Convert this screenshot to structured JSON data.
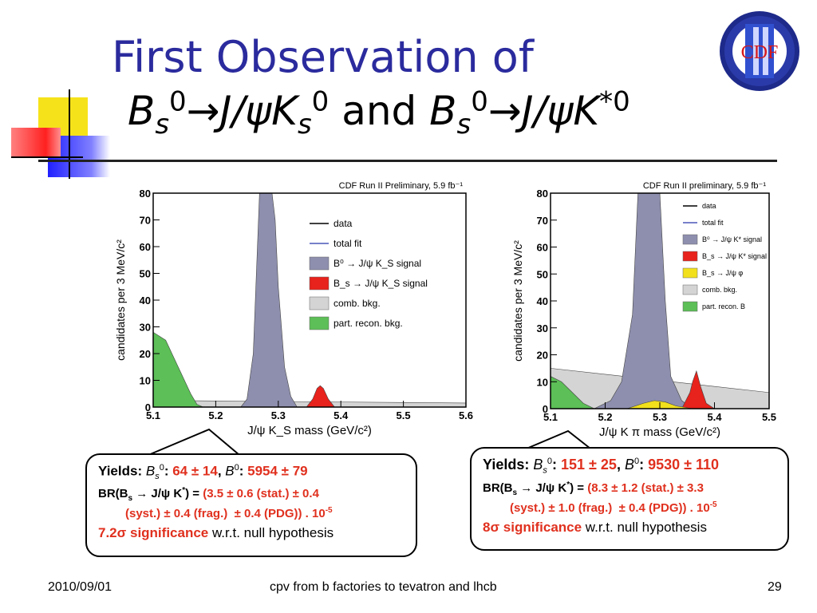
{
  "slide": {
    "title_line1": "First Observation of",
    "logo_text": "CDF",
    "footer_date": "2010/09/01",
    "footer_center": "cpv from b factories to tevatron and lhcb",
    "page_number": "29"
  },
  "title2": {
    "part1_main": "B",
    "part1_sub": "s",
    "part1_sup": "0",
    "arrow": "→",
    "part2": "J/ψK",
    "part2_sub": "s",
    "part2_sup": "0",
    "and": " and ",
    "part3_main": "B",
    "part3_sub": "s",
    "part3_sup": "0",
    "arrow2": "→",
    "part4": "J/ψK",
    "part4_sup": "*0"
  },
  "colors": {
    "title_blue": "#2b2b9e",
    "signal_purple": "#8e8fae",
    "bs_red": "#e8221c",
    "comb_gray": "#d4d4d4",
    "part_green": "#5cbf57",
    "phi_yellow": "#f2e01c",
    "fit_blue": "#4a56b8",
    "text_red": "#e0301e"
  },
  "chart_data": [
    {
      "type": "area",
      "title": "CDF Run II Preliminary, 5.9 fb⁻¹",
      "xlabel": "J/ψ K_S mass (GeV/c²)",
      "ylabel": "candidates per 3 MeV/c²",
      "xlim": [
        5.1,
        5.6
      ],
      "ylim": [
        0,
        80
      ],
      "x_ticks": [
        "5.1",
        "5.2",
        "5.3",
        "5.4",
        "5.5",
        "5.6"
      ],
      "y_ticks": [
        "0",
        "10",
        "20",
        "30",
        "40",
        "50",
        "60",
        "70",
        "80"
      ],
      "legend": [
        "data",
        "total fit",
        "B⁰ → J/ψ K_S signal",
        "B_s → J/ψ K_S signal",
        "comb. bkg.",
        "part. recon. bkg."
      ],
      "legend_position": "top-right",
      "series": [
        {
          "name": "B⁰ → J/ψ K_S signal",
          "x": [
            5.24,
            5.25,
            5.26,
            5.265,
            5.27,
            5.28,
            5.29,
            5.295,
            5.3,
            5.31,
            5.32,
            5.33
          ],
          "values": [
            0,
            3,
            20,
            50,
            80,
            80,
            80,
            70,
            45,
            15,
            4,
            0
          ]
        },
        {
          "name": "B_s → J/ψ K_S signal",
          "x": [
            5.345,
            5.355,
            5.362,
            5.367,
            5.372,
            5.38,
            5.39
          ],
          "values": [
            0,
            3,
            7,
            8,
            7,
            3,
            0
          ]
        },
        {
          "name": "comb. bkg.",
          "x": [
            5.1,
            5.6
          ],
          "values": [
            2.5,
            1.5
          ]
        },
        {
          "name": "part. recon. bkg.",
          "x": [
            5.1,
            5.12,
            5.14,
            5.16,
            5.17,
            5.18
          ],
          "values": [
            28,
            25,
            15,
            5,
            1,
            0
          ]
        }
      ]
    },
    {
      "type": "area",
      "title": "CDF Run II preliminary, 5.9 fb⁻¹",
      "xlabel": "J/ψ K π mass (GeV/c²)",
      "ylabel": "candidates per 3 MeV/c²",
      "xlim": [
        5.1,
        5.5
      ],
      "ylim": [
        0,
        80
      ],
      "x_ticks": [
        "5.1",
        "5.2",
        "5.3",
        "5.4",
        "5.5"
      ],
      "y_ticks": [
        "0",
        "10",
        "20",
        "30",
        "40",
        "50",
        "60",
        "70",
        "80"
      ],
      "legend": [
        "data",
        "total fit",
        "B⁰ → J/ψ K* signal",
        "B_s → J/ψ K* signal",
        "B_s → J/ψ φ",
        "comb. bkg.",
        "part. recon. B"
      ],
      "legend_position": "top-right",
      "series": [
        {
          "name": "B⁰ → J/ψ K* signal",
          "x": [
            5.18,
            5.21,
            5.23,
            5.25,
            5.26,
            5.27,
            5.28,
            5.3,
            5.31,
            5.32,
            5.34,
            5.36
          ],
          "values": [
            0,
            3,
            10,
            35,
            80,
            80,
            80,
            80,
            40,
            12,
            3,
            0
          ]
        },
        {
          "name": "B_s → J/ψ K* signal",
          "x": [
            5.34,
            5.355,
            5.36,
            5.367,
            5.375,
            5.385,
            5.4
          ],
          "values": [
            0,
            6,
            10,
            14,
            8,
            2,
            0
          ]
        },
        {
          "name": "B_s → J/ψ φ",
          "x": [
            5.24,
            5.27,
            5.29,
            5.31,
            5.33,
            5.36
          ],
          "values": [
            0,
            2,
            3,
            2.5,
            1,
            0
          ]
        },
        {
          "name": "comb. bkg.",
          "x": [
            5.1,
            5.5
          ],
          "values": [
            15,
            6
          ]
        },
        {
          "name": "part. recon. B",
          "x": [
            5.1,
            5.12,
            5.14,
            5.16,
            5.18
          ],
          "values": [
            12,
            10,
            6,
            2,
            0
          ]
        }
      ]
    }
  ],
  "callout_left": {
    "yields_label": "Yields: ",
    "bs_sym": "B",
    "bs_sub": "s",
    "bs_sup": "0",
    "bs_colon": ": ",
    "bs_yield": "64 ± 14",
    "sep": ", ",
    "b0_sym": "B",
    "b0_sup": "0",
    "b0_colon": ": ",
    "b0_yield": "5954 ± 79",
    "br_label": "BR(B",
    "br_sub": "s",
    "br_mid": " → J/ψ K",
    "br_sup": "*",
    "br_eq": ") = ",
    "br_value1": "(3.5 ± 0.6 (stat.) ± 0.4",
    "br_value2": "(syst.) ± 0.4 (frag.)  ± 0.4 (PDG)) . 10",
    "br_exp": "-5",
    "sig_value": "7.2σ significance",
    "sig_rest": " w.r.t. null hypothesis"
  },
  "callout_right": {
    "yields_label": "Yields: ",
    "bs_sym": "B",
    "bs_sub": "s",
    "bs_sup": "0",
    "bs_colon": ": ",
    "bs_yield": "151 ± 25",
    "sep": ", ",
    "b0_sym": "B",
    "b0_sup": "0",
    "b0_colon": ": ",
    "b0_yield": "9530 ± 110",
    "br_label": "BR(B",
    "br_sub": "s",
    "br_mid": " → J/ψ K",
    "br_sup": "*",
    "br_eq": ") = ",
    "br_value1": "(8.3 ± 1.2 (stat.) ± 3.3",
    "br_value2": "(syst.) ± 1.0 (frag.)  ± 0.4 (PDG)) . 10",
    "br_exp": "-5",
    "sig_value": "8σ significance",
    "sig_rest": " w.r.t. null hypothesis"
  }
}
